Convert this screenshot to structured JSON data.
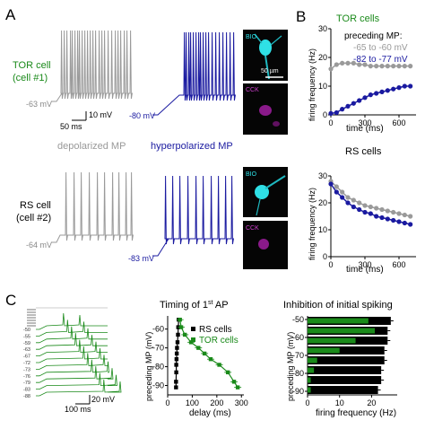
{
  "panel_labels": {
    "a": "A",
    "b": "B",
    "c": "C"
  },
  "panel_a": {
    "tor_label_line1": "TOR cell",
    "tor_label_line2": "(cell #1)",
    "rs_label_line1": "RS cell",
    "rs_label_line2": "(cell #2)",
    "tor_mp_gray": "-63 mV",
    "tor_mp_blue": "-80 mV",
    "rs_mp_gray": "-64 mV",
    "rs_mp_blue": "-83 mV",
    "scale_mv": "10 mV",
    "scale_ms": "50 ms",
    "depolarized": "depolarized MP",
    "hyperpolarized": "hyperpolarized MP",
    "img_bio": "BIO",
    "img_cck": "CCK",
    "img_scale": "50 µm"
  },
  "panel_b": {
    "tor_title": "TOR cells",
    "rs_title": "RS cells",
    "legend_title": "preceding MP:",
    "legend_gray": "-65 to -60 mV",
    "legend_blue": "-82 to -77 mV",
    "ylabel": "firing frequency (Hz)",
    "xlabel": "time (ms)",
    "yticks": [
      "0",
      "10",
      "20",
      "30"
    ],
    "xticks": [
      "0",
      "300",
      "600"
    ]
  },
  "panel_c": {
    "trace_labels": [
      "-88",
      "-83",
      "-79",
      "-76",
      "-73",
      "-72",
      "-67",
      "-63",
      "-59",
      "-55",
      "-50"
    ],
    "scale_mv": "20 mV",
    "scale_ms": "100 ms",
    "timing_title": "Timing of 1st AP",
    "timing_title_sup": "st",
    "rs_legend": "RS cells",
    "tor_legend": "TOR cells",
    "timing_ylabel": "preceding MP (mV)",
    "timing_xlabel": "delay (ms)",
    "timing_yticks": [
      "-60",
      "-70",
      "-80",
      "-90"
    ],
    "timing_xticks": [
      "0",
      "100",
      "200",
      "300"
    ],
    "inhib_title": "Inhibition of initial spiking",
    "inhib_ylabel": "preceding MP (mV)",
    "inhib_xlabel": "firing frequency (Hz)",
    "inhib_yticks": [
      "-50",
      "-60",
      "-70",
      "-80",
      "-90"
    ],
    "inhib_xticks": [
      "0",
      "10",
      "20"
    ]
  },
  "colors": {
    "tor": "#1a8a1a",
    "gray": "#9a9a9a",
    "blue": "#1a1aa0",
    "rs": "#000000",
    "cyan": "#19c0c8",
    "magenta": "#c020c0"
  },
  "chart_data": [
    {
      "type": "line",
      "title": "TOR cells",
      "xlabel": "time (ms)",
      "ylabel": "firing frequency (Hz)",
      "ylim": [
        0,
        30
      ],
      "xlim": [
        0,
        750
      ],
      "series": [
        {
          "name": "-65 to -60 mV",
          "x": [
            0,
            50,
            100,
            150,
            200,
            250,
            300,
            350,
            400,
            450,
            500,
            550,
            600,
            650,
            700
          ],
          "values": [
            16,
            17.5,
            18,
            18,
            18,
            17.5,
            17.5,
            17,
            17,
            17,
            17,
            17,
            17,
            17,
            17
          ]
        },
        {
          "name": "-82 to -77 mV",
          "x": [
            0,
            50,
            100,
            150,
            200,
            250,
            300,
            350,
            400,
            450,
            500,
            550,
            600,
            650,
            700
          ],
          "values": [
            0.5,
            0.8,
            2,
            3,
            4,
            5,
            6,
            7,
            7.5,
            8,
            8.5,
            9,
            9.5,
            10,
            10
          ]
        }
      ]
    },
    {
      "type": "line",
      "title": "RS cells",
      "xlabel": "time (ms)",
      "ylabel": "firing frequency (Hz)",
      "ylim": [
        0,
        30
      ],
      "xlim": [
        0,
        750
      ],
      "series": [
        {
          "name": "-65 to -60 mV",
          "x": [
            0,
            50,
            100,
            150,
            200,
            250,
            300,
            350,
            400,
            450,
            500,
            550,
            600,
            650,
            700
          ],
          "values": [
            28,
            26,
            24,
            22,
            21,
            20,
            19,
            18.5,
            18,
            17.5,
            17,
            16.5,
            16,
            15.5,
            15
          ]
        },
        {
          "name": "-82 to -77 mV",
          "x": [
            0,
            50,
            100,
            150,
            200,
            250,
            300,
            350,
            400,
            450,
            500,
            550,
            600,
            650,
            700
          ],
          "values": [
            27,
            24,
            22,
            20,
            18.5,
            17.5,
            16.5,
            16,
            15,
            14.5,
            14,
            13.5,
            13,
            12.5,
            12
          ]
        }
      ]
    },
    {
      "type": "line",
      "title": "Timing of 1st AP",
      "xlabel": "delay (ms)",
      "ylabel": "preceding MP (mV)",
      "xlim": [
        0,
        310
      ],
      "ylim": [
        -95,
        -53
      ],
      "series": [
        {
          "name": "RS cells",
          "x": [
            45,
            43,
            42,
            40,
            38,
            37,
            36,
            35,
            35,
            34,
            34
          ],
          "values": [
            -55,
            -59,
            -63,
            -67,
            -70,
            -73,
            -76,
            -79,
            -83,
            -88,
            -91
          ]
        },
        {
          "name": "TOR cells",
          "x": [
            50,
            55,
            70,
            95,
            125,
            150,
            175,
            210,
            245,
            270,
            285
          ],
          "values": [
            -55,
            -59,
            -63,
            -67,
            -70,
            -73,
            -76,
            -79,
            -83,
            -88,
            -91
          ]
        }
      ]
    },
    {
      "type": "bar",
      "title": "Inhibition of initial spiking",
      "xlabel": "firing frequency (Hz)",
      "ylabel": "preceding MP (mV)",
      "xlim": [
        0,
        28
      ],
      "categories": [
        "-52",
        "-58",
        "-64",
        "-70",
        "-76",
        "-82",
        "-88",
        "-94"
      ],
      "series": [
        {
          "name": "RS cells",
          "values": [
            26,
            25,
            25,
            24,
            24,
            23,
            23,
            22
          ]
        },
        {
          "name": "TOR cells",
          "values": [
            19,
            21,
            15,
            10,
            3,
            2,
            1,
            1
          ]
        }
      ]
    }
  ]
}
